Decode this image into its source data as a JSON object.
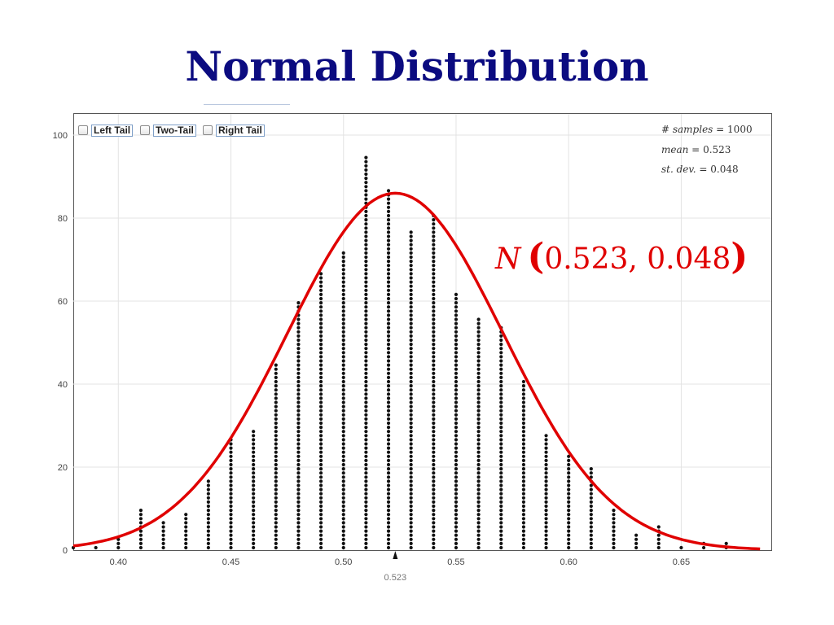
{
  "slide": {
    "title": "Normal Distribution"
  },
  "controls": [
    {
      "label": "Left Tail"
    },
    {
      "label": "Two-Tail"
    },
    {
      "label": "Right Tail"
    }
  ],
  "stats": {
    "samples_label": "# samples =",
    "samples_value": "1000",
    "mean_label": "mean =",
    "mean_value": "0.523",
    "sd_label": "st. dev. =",
    "sd_value": "0.048"
  },
  "formula": {
    "symbol": "N",
    "open": "(",
    "args": "0.523, 0.048",
    "close": ")"
  },
  "chart_data": {
    "type": "scatter",
    "title": "",
    "xlabel": "",
    "ylabel": "",
    "xlim": [
      0.38,
      0.69
    ],
    "ylim": [
      0,
      104
    ],
    "x_ticks": [
      "0.40",
      "0.45",
      "0.50",
      "0.55",
      "0.60",
      "0.65"
    ],
    "y_ticks": [
      "0",
      "20",
      "40",
      "60",
      "80",
      "100"
    ],
    "mean_marker": {
      "x": 0.523,
      "label": "0.523"
    },
    "grid": true,
    "dot_columns": {
      "x": [
        0.38,
        0.39,
        0.4,
        0.41,
        0.42,
        0.43,
        0.44,
        0.45,
        0.46,
        0.47,
        0.48,
        0.49,
        0.5,
        0.51,
        0.52,
        0.53,
        0.54,
        0.55,
        0.56,
        0.57,
        0.58,
        0.59,
        0.6,
        0.61,
        0.62,
        0.63,
        0.64,
        0.65,
        0.66,
        0.67
      ],
      "counts": [
        1,
        1,
        3,
        10,
        7,
        9,
        17,
        27,
        29,
        45,
        60,
        67,
        72,
        95,
        87,
        77,
        81,
        62,
        56,
        54,
        41,
        28,
        23,
        20,
        10,
        4,
        6,
        1,
        2,
        2
      ]
    },
    "curve": {
      "mean": 0.523,
      "sd": 0.048,
      "peak": 86,
      "x_range": [
        0.38,
        0.685
      ],
      "color": "#e00000"
    }
  }
}
